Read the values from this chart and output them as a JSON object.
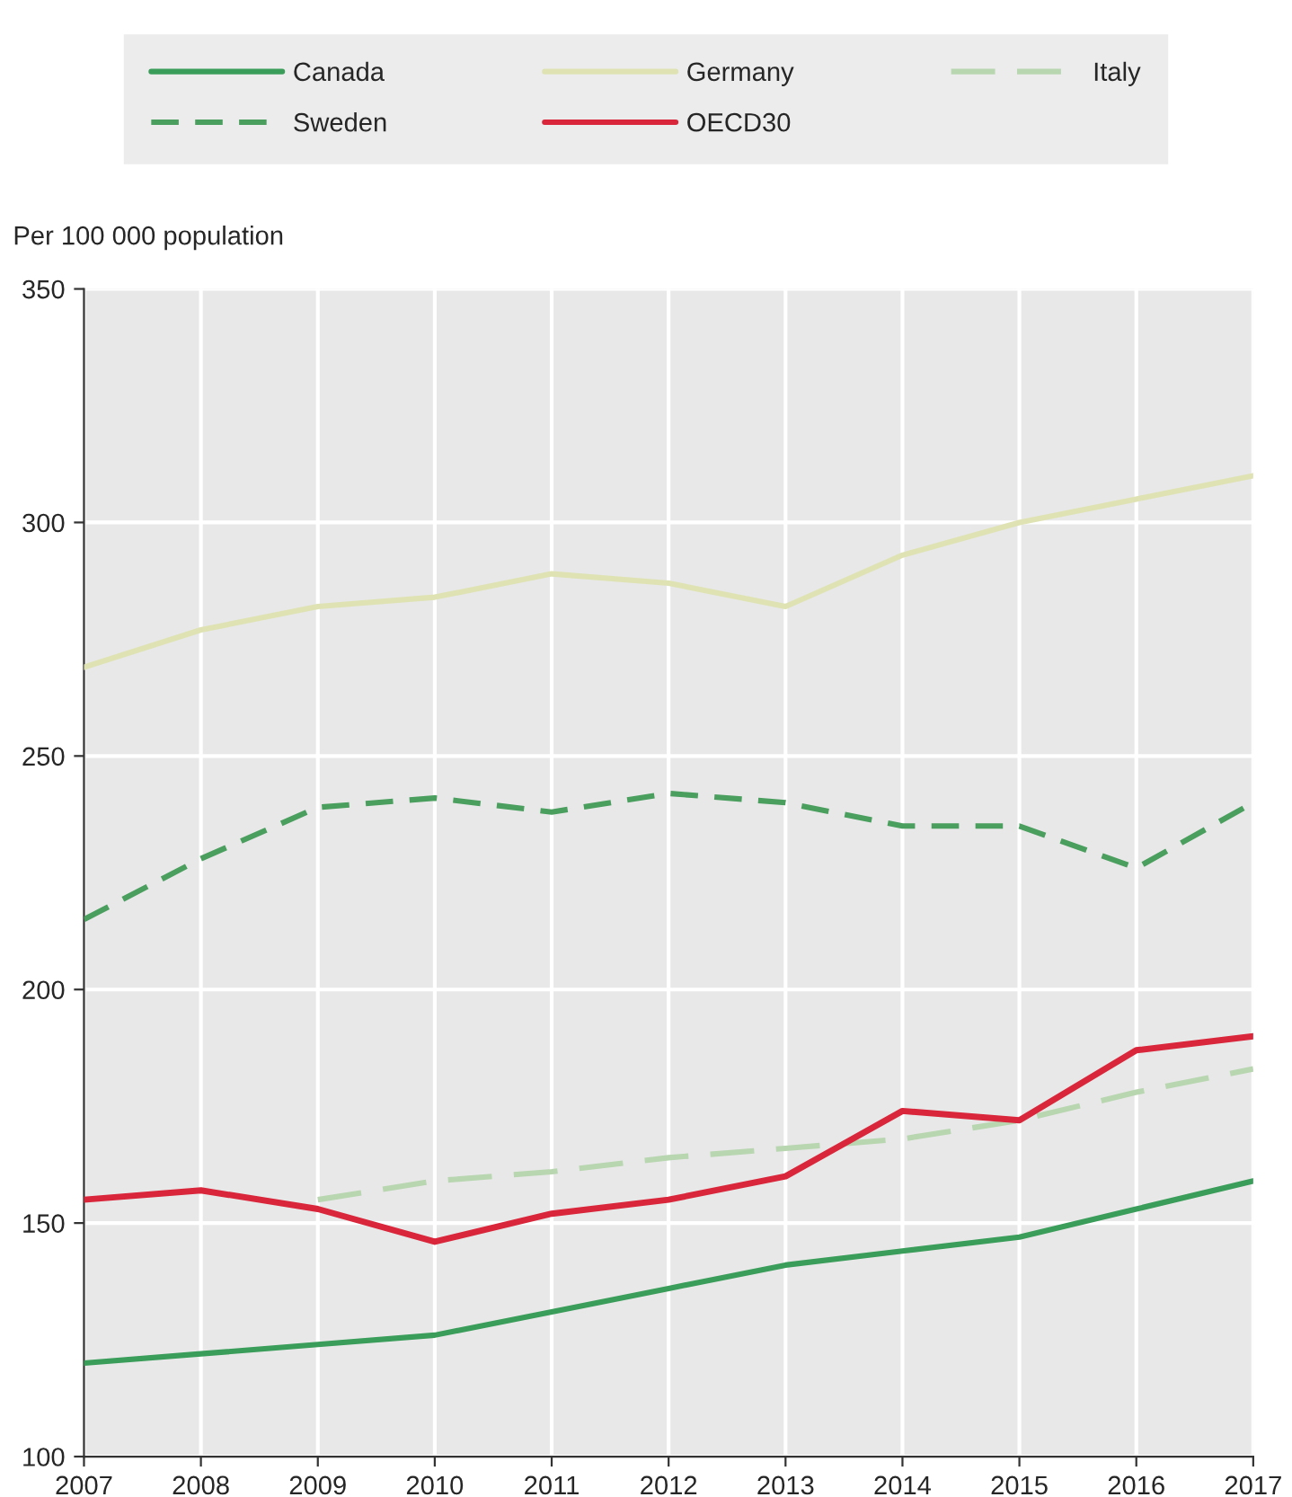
{
  "chart_data": {
    "type": "line",
    "ylabel": "Per 100 000 population",
    "x": [
      2007,
      2008,
      2009,
      2010,
      2011,
      2012,
      2013,
      2014,
      2015,
      2016,
      2017
    ],
    "series": [
      {
        "name": "Canada",
        "color": "#3a9d5a",
        "line_style": "solid",
        "values": [
          120,
          122,
          124,
          126,
          131,
          136,
          141,
          144,
          147,
          153,
          159
        ]
      },
      {
        "name": "Germany",
        "color": "#dfe3b4",
        "line_style": "solid",
        "values": [
          269,
          277,
          282,
          284,
          289,
          287,
          282,
          293,
          300,
          305,
          310
        ]
      },
      {
        "name": "Italy",
        "color": "#b8d6b0",
        "line_style": "dashed",
        "values": [
          null,
          null,
          155,
          159,
          161,
          164,
          166,
          168,
          172,
          178,
          183
        ]
      },
      {
        "name": "Sweden",
        "color": "#4a9e5e",
        "line_style": "dashed",
        "values": [
          215,
          228,
          239,
          241,
          238,
          242,
          240,
          235,
          235,
          226,
          240
        ]
      },
      {
        "name": "OECD30",
        "color": "#d9263a",
        "line_style": "solid",
        "values": [
          155,
          157,
          153,
          146,
          152,
          155,
          160,
          174,
          172,
          187,
          190
        ]
      }
    ],
    "xlim": [
      2007,
      2017
    ],
    "xticks": [
      2007,
      2008,
      2009,
      2010,
      2011,
      2012,
      2013,
      2014,
      2015,
      2016,
      2017
    ],
    "ylim": [
      100,
      350
    ],
    "yticks": [
      100,
      150,
      200,
      250,
      300,
      350
    ],
    "grid": true,
    "legend": "top",
    "marker": "none"
  }
}
